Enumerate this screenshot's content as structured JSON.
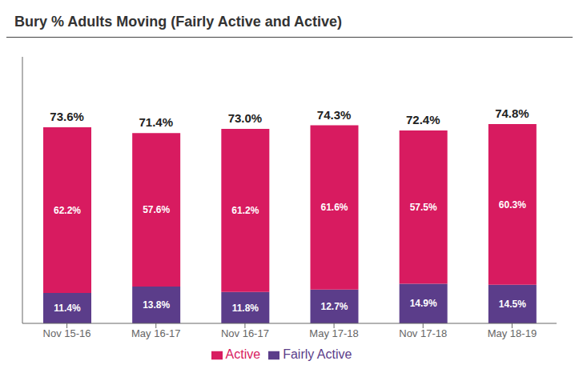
{
  "chart_data": {
    "type": "bar",
    "title": "Bury % Adults Moving (Fairly Active and Active)",
    "categories": [
      "Nov 15-16",
      "May 16-17",
      "Nov 16-17",
      "May 17-18",
      "Nov 17-18",
      "May 18-19"
    ],
    "series": [
      {
        "name": "Fairly Active",
        "color": "#5b3d8a",
        "values": [
          11.4,
          13.8,
          11.8,
          12.7,
          14.9,
          14.5
        ],
        "value_labels": [
          "11.4%",
          "13.8%",
          "11.8%",
          "12.7%",
          "14.9%",
          "14.5%"
        ]
      },
      {
        "name": "Active",
        "color": "#d81b60",
        "values": [
          62.2,
          57.6,
          61.2,
          61.6,
          57.5,
          60.3
        ],
        "value_labels": [
          "62.2%",
          "57.6%",
          "61.2%",
          "61.6%",
          "57.5%",
          "60.3%"
        ]
      }
    ],
    "totals": [
      73.6,
      71.4,
      73.0,
      74.3,
      72.4,
      74.8
    ],
    "total_labels": [
      "73.6%",
      "71.4%",
      "73.0%",
      "74.3%",
      "72.4%",
      "74.8%"
    ],
    "stacked": true,
    "data_labels": true,
    "ylim": [
      0,
      100
    ],
    "tick_labels": "x",
    "grid": false,
    "legend": "bottom"
  }
}
